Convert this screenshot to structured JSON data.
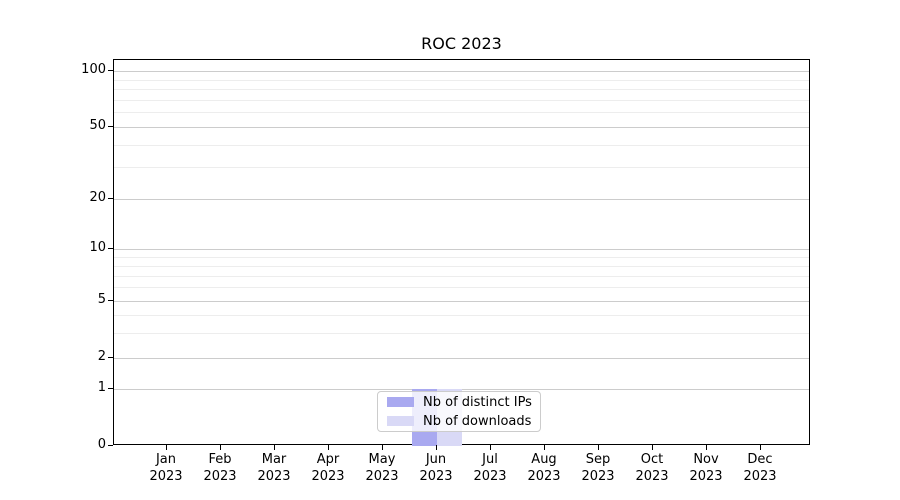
{
  "chart_data": {
    "type": "bar",
    "title": "ROC 2023",
    "categories": [
      {
        "month": "Jan",
        "year": "2023"
      },
      {
        "month": "Feb",
        "year": "2023"
      },
      {
        "month": "Mar",
        "year": "2023"
      },
      {
        "month": "Apr",
        "year": "2023"
      },
      {
        "month": "May",
        "year": "2023"
      },
      {
        "month": "Jun",
        "year": "2023"
      },
      {
        "month": "Jul",
        "year": "2023"
      },
      {
        "month": "Aug",
        "year": "2023"
      },
      {
        "month": "Sep",
        "year": "2023"
      },
      {
        "month": "Oct",
        "year": "2023"
      },
      {
        "month": "Nov",
        "year": "2023"
      },
      {
        "month": "Dec",
        "year": "2023"
      }
    ],
    "series": [
      {
        "name": "Nb of distinct IPs",
        "color": "#a9a9f0",
        "values": [
          0,
          0,
          0,
          0,
          0,
          1,
          0,
          0,
          0,
          0,
          0,
          0
        ]
      },
      {
        "name": "Nb of downloads",
        "color": "#d9d9f6",
        "values": [
          0,
          0,
          0,
          0,
          0,
          1,
          0,
          0,
          0,
          0,
          0,
          0
        ]
      }
    ],
    "yticks": [
      0,
      1,
      2,
      5,
      10,
      20,
      50,
      100
    ],
    "yscale": "symlog",
    "ylim": [
      0,
      110
    ],
    "xlabel": "",
    "ylabel": "",
    "grid": true,
    "legend_position": "lower center"
  },
  "colors": {
    "grid_major": "#cccccc",
    "grid_minor": "#ededed",
    "spine": "#000000",
    "background": "#ffffff"
  }
}
